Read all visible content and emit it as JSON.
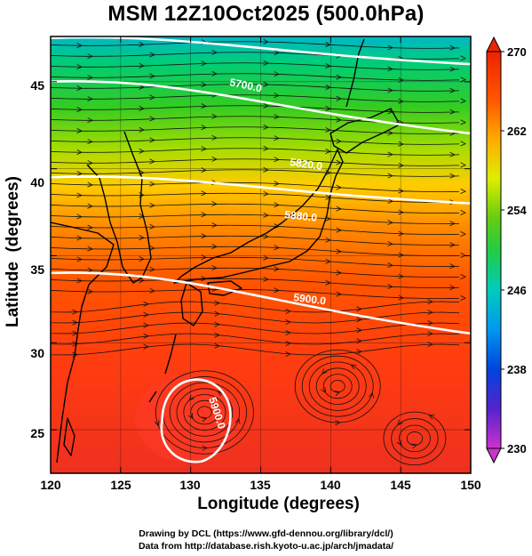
{
  "title": "MSM 12Z10Oct2025 (500.0hPa)",
  "x_axis": {
    "label": "Longitude (degrees)",
    "ticks": [
      "120",
      "125",
      "130",
      "135",
      "140",
      "145",
      "150"
    ],
    "range": [
      120,
      150
    ]
  },
  "y_axis": {
    "label": "Latitude  (degrees)",
    "ticks": [
      "25",
      "30",
      "35",
      "40",
      "45"
    ],
    "range": [
      22.5,
      47.6
    ]
  },
  "colorbar": {
    "ticks": [
      "270",
      "262",
      "254",
      "246",
      "238",
      "230"
    ],
    "range": [
      230,
      270
    ],
    "colors": [
      "#cc33cc",
      "#5522cc",
      "#0044dd",
      "#0088ee",
      "#00cccc",
      "#00cc88",
      "#22cc22",
      "#88dd00",
      "#ddee00",
      "#ffcc00",
      "#ff8800",
      "#ff4400",
      "#ee2200"
    ]
  },
  "contours": [
    {
      "label": "5700.0",
      "lat_at_120": 47.5,
      "lat_at_150": 46.0
    },
    {
      "label": "5820.0",
      "lat_at_120": 45.0,
      "lat_at_150": 42.0
    },
    {
      "label": "5880.0",
      "lat_at_120": 39.5,
      "lat_at_150": 38.0
    },
    {
      "label": "5900.0",
      "lat_at_120": 34.0,
      "lat_at_150": 30.5
    },
    {
      "label": "5900.0",
      "closed_center": [
        130.5,
        26.0
      ]
    }
  ],
  "credits": [
    "Drawing by DCL (https://www.gfd-dennou.org/library/dcl/)",
    "Data from http://database.rish.kyoto-u.ac.jp/arch/jmadata/"
  ]
}
